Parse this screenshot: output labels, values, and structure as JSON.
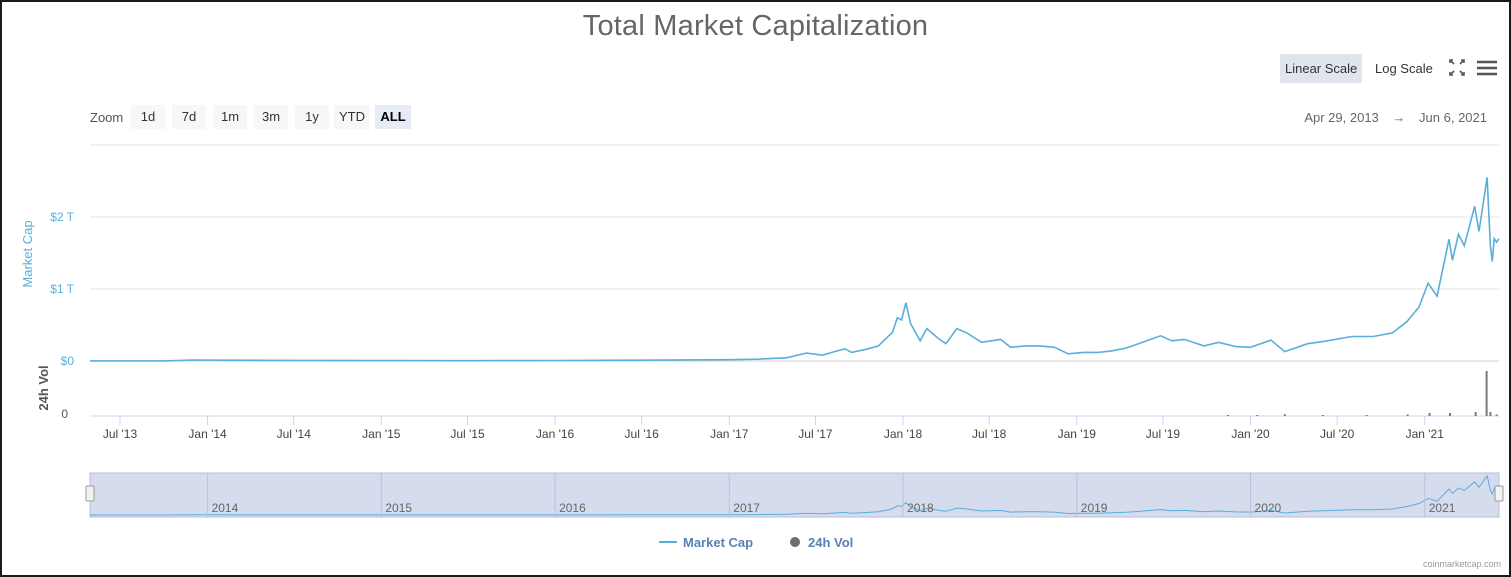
{
  "chart_data": {
    "type": "line",
    "title": "Total Market Capitalization",
    "ylabel": "Market Cap",
    "y_unit": "USD (trillions)",
    "ylim": [
      0,
      2.5
    ],
    "yticks": [
      {
        "value": 0,
        "label": "$0"
      },
      {
        "value": 1,
        "label": "$1 T"
      },
      {
        "value": 2,
        "label": "$2 T"
      }
    ],
    "volume_axis": {
      "label": "24h Vol",
      "ticks": [
        "0"
      ]
    },
    "x_range": [
      "2013-04-29",
      "2021-06-06"
    ],
    "xticks": [
      {
        "date": "2013-07-01",
        "label": "Jul '13"
      },
      {
        "date": "2014-01-01",
        "label": "Jan '14"
      },
      {
        "date": "2014-07-01",
        "label": "Jul '14"
      },
      {
        "date": "2015-01-01",
        "label": "Jan '15"
      },
      {
        "date": "2015-07-01",
        "label": "Jul '15"
      },
      {
        "date": "2016-01-01",
        "label": "Jan '16"
      },
      {
        "date": "2016-07-01",
        "label": "Jul '16"
      },
      {
        "date": "2017-01-01",
        "label": "Jan '17"
      },
      {
        "date": "2017-07-01",
        "label": "Jul '17"
      },
      {
        "date": "2018-01-01",
        "label": "Jan '18"
      },
      {
        "date": "2018-07-01",
        "label": "Jul '18"
      },
      {
        "date": "2019-01-01",
        "label": "Jan '19"
      },
      {
        "date": "2019-07-01",
        "label": "Jul '19"
      },
      {
        "date": "2020-01-01",
        "label": "Jan '20"
      },
      {
        "date": "2020-07-01",
        "label": "Jul '20"
      },
      {
        "date": "2021-01-01",
        "label": "Jan '21"
      }
    ],
    "navigator_labels": [
      {
        "date": "2014-01-01",
        "label": "2014"
      },
      {
        "date": "2015-01-01",
        "label": "2015"
      },
      {
        "date": "2016-01-01",
        "label": "2016"
      },
      {
        "date": "2017-01-01",
        "label": "2017"
      },
      {
        "date": "2018-01-01",
        "label": "2018"
      },
      {
        "date": "2019-01-01",
        "label": "2019"
      },
      {
        "date": "2020-01-01",
        "label": "2020"
      },
      {
        "date": "2021-01-01",
        "label": "2021"
      }
    ],
    "series": [
      {
        "name": "Market Cap",
        "color": "#5aaedb",
        "points": [
          [
            "2013-04-29",
            0.0015
          ],
          [
            "2013-10-01",
            0.002
          ],
          [
            "2013-12-04",
            0.014
          ],
          [
            "2014-02-01",
            0.011
          ],
          [
            "2014-07-01",
            0.008
          ],
          [
            "2015-01-01",
            0.005
          ],
          [
            "2015-07-01",
            0.004
          ],
          [
            "2016-01-01",
            0.007
          ],
          [
            "2016-07-01",
            0.011
          ],
          [
            "2017-01-01",
            0.018
          ],
          [
            "2017-03-01",
            0.025
          ],
          [
            "2017-05-01",
            0.045
          ],
          [
            "2017-06-12",
            0.11
          ],
          [
            "2017-07-16",
            0.08
          ],
          [
            "2017-08-10",
            0.13
          ],
          [
            "2017-09-01",
            0.17
          ],
          [
            "2017-09-15",
            0.12
          ],
          [
            "2017-10-20",
            0.17
          ],
          [
            "2017-11-10",
            0.21
          ],
          [
            "2017-12-10",
            0.4
          ],
          [
            "2017-12-20",
            0.6
          ],
          [
            "2017-12-29",
            0.57
          ],
          [
            "2018-01-07",
            0.81
          ],
          [
            "2018-01-17",
            0.52
          ],
          [
            "2018-02-06",
            0.28
          ],
          [
            "2018-02-20",
            0.45
          ],
          [
            "2018-03-15",
            0.32
          ],
          [
            "2018-04-01",
            0.24
          ],
          [
            "2018-04-24",
            0.45
          ],
          [
            "2018-05-15",
            0.39
          ],
          [
            "2018-06-15",
            0.26
          ],
          [
            "2018-07-25",
            0.3
          ],
          [
            "2018-08-15",
            0.19
          ],
          [
            "2018-09-15",
            0.21
          ],
          [
            "2018-10-15",
            0.21
          ],
          [
            "2018-11-15",
            0.19
          ],
          [
            "2018-12-14",
            0.1
          ],
          [
            "2019-01-15",
            0.12
          ],
          [
            "2019-02-15",
            0.12
          ],
          [
            "2019-03-15",
            0.14
          ],
          [
            "2019-04-15",
            0.18
          ],
          [
            "2019-05-15",
            0.25
          ],
          [
            "2019-06-26",
            0.35
          ],
          [
            "2019-07-20",
            0.28
          ],
          [
            "2019-08-15",
            0.3
          ],
          [
            "2019-09-25",
            0.21
          ],
          [
            "2019-10-26",
            0.26
          ],
          [
            "2019-12-01",
            0.2
          ],
          [
            "2020-01-01",
            0.19
          ],
          [
            "2020-02-13",
            0.29
          ],
          [
            "2020-03-13",
            0.13
          ],
          [
            "2020-04-30",
            0.24
          ],
          [
            "2020-06-01",
            0.27
          ],
          [
            "2020-08-01",
            0.34
          ],
          [
            "2020-09-15",
            0.34
          ],
          [
            "2020-10-25",
            0.39
          ],
          [
            "2020-11-25",
            0.55
          ],
          [
            "2020-12-20",
            0.75
          ],
          [
            "2021-01-08",
            1.08
          ],
          [
            "2021-01-27",
            0.9
          ],
          [
            "2021-02-21",
            1.69
          ],
          [
            "2021-02-28",
            1.4
          ],
          [
            "2021-03-13",
            1.76
          ],
          [
            "2021-03-25",
            1.6
          ],
          [
            "2021-04-16",
            2.15
          ],
          [
            "2021-04-25",
            1.8
          ],
          [
            "2021-05-12",
            2.55
          ],
          [
            "2021-05-19",
            1.6
          ],
          [
            "2021-05-23",
            1.38
          ],
          [
            "2021-05-27",
            1.7
          ],
          [
            "2021-06-01",
            1.65
          ],
          [
            "2021-06-06",
            1.7
          ]
        ]
      },
      {
        "name": "24h Vol",
        "color": "#7a7a7a",
        "points": [
          [
            "2019-11-15",
            0.02
          ],
          [
            "2020-01-15",
            0.02
          ],
          [
            "2020-03-13",
            0.035
          ],
          [
            "2020-06-01",
            0.015
          ],
          [
            "2020-09-01",
            0.02
          ],
          [
            "2020-11-26",
            0.03
          ],
          [
            "2021-01-11",
            0.06
          ],
          [
            "2021-02-23",
            0.06
          ],
          [
            "2021-04-18",
            0.08
          ],
          [
            "2021-05-11",
            0.9
          ],
          [
            "2021-05-19",
            0.08
          ],
          [
            "2021-06-01",
            0.03
          ]
        ]
      }
    ]
  },
  "ui": {
    "scale_buttons": {
      "linear": "Linear Scale",
      "log": "Log Scale",
      "active": "linear"
    },
    "zoom": {
      "label": "Zoom",
      "buttons": [
        "1d",
        "7d",
        "1m",
        "3m",
        "1y",
        "YTD",
        "ALL"
      ],
      "active": "ALL"
    },
    "range": {
      "from": "Apr 29, 2013",
      "arrow": "→",
      "to": "Jun 6, 2021"
    },
    "legend": [
      {
        "name": "Market Cap",
        "symbol": "line",
        "color": "#5aaedb"
      },
      {
        "name": "24h Vol",
        "symbol": "dot",
        "color": "#6e6e6e"
      }
    ],
    "credits": "coinmarketcap.com",
    "icons": {
      "fullscreen": "expand-icon",
      "menu": "hamburger-menu-icon"
    }
  }
}
